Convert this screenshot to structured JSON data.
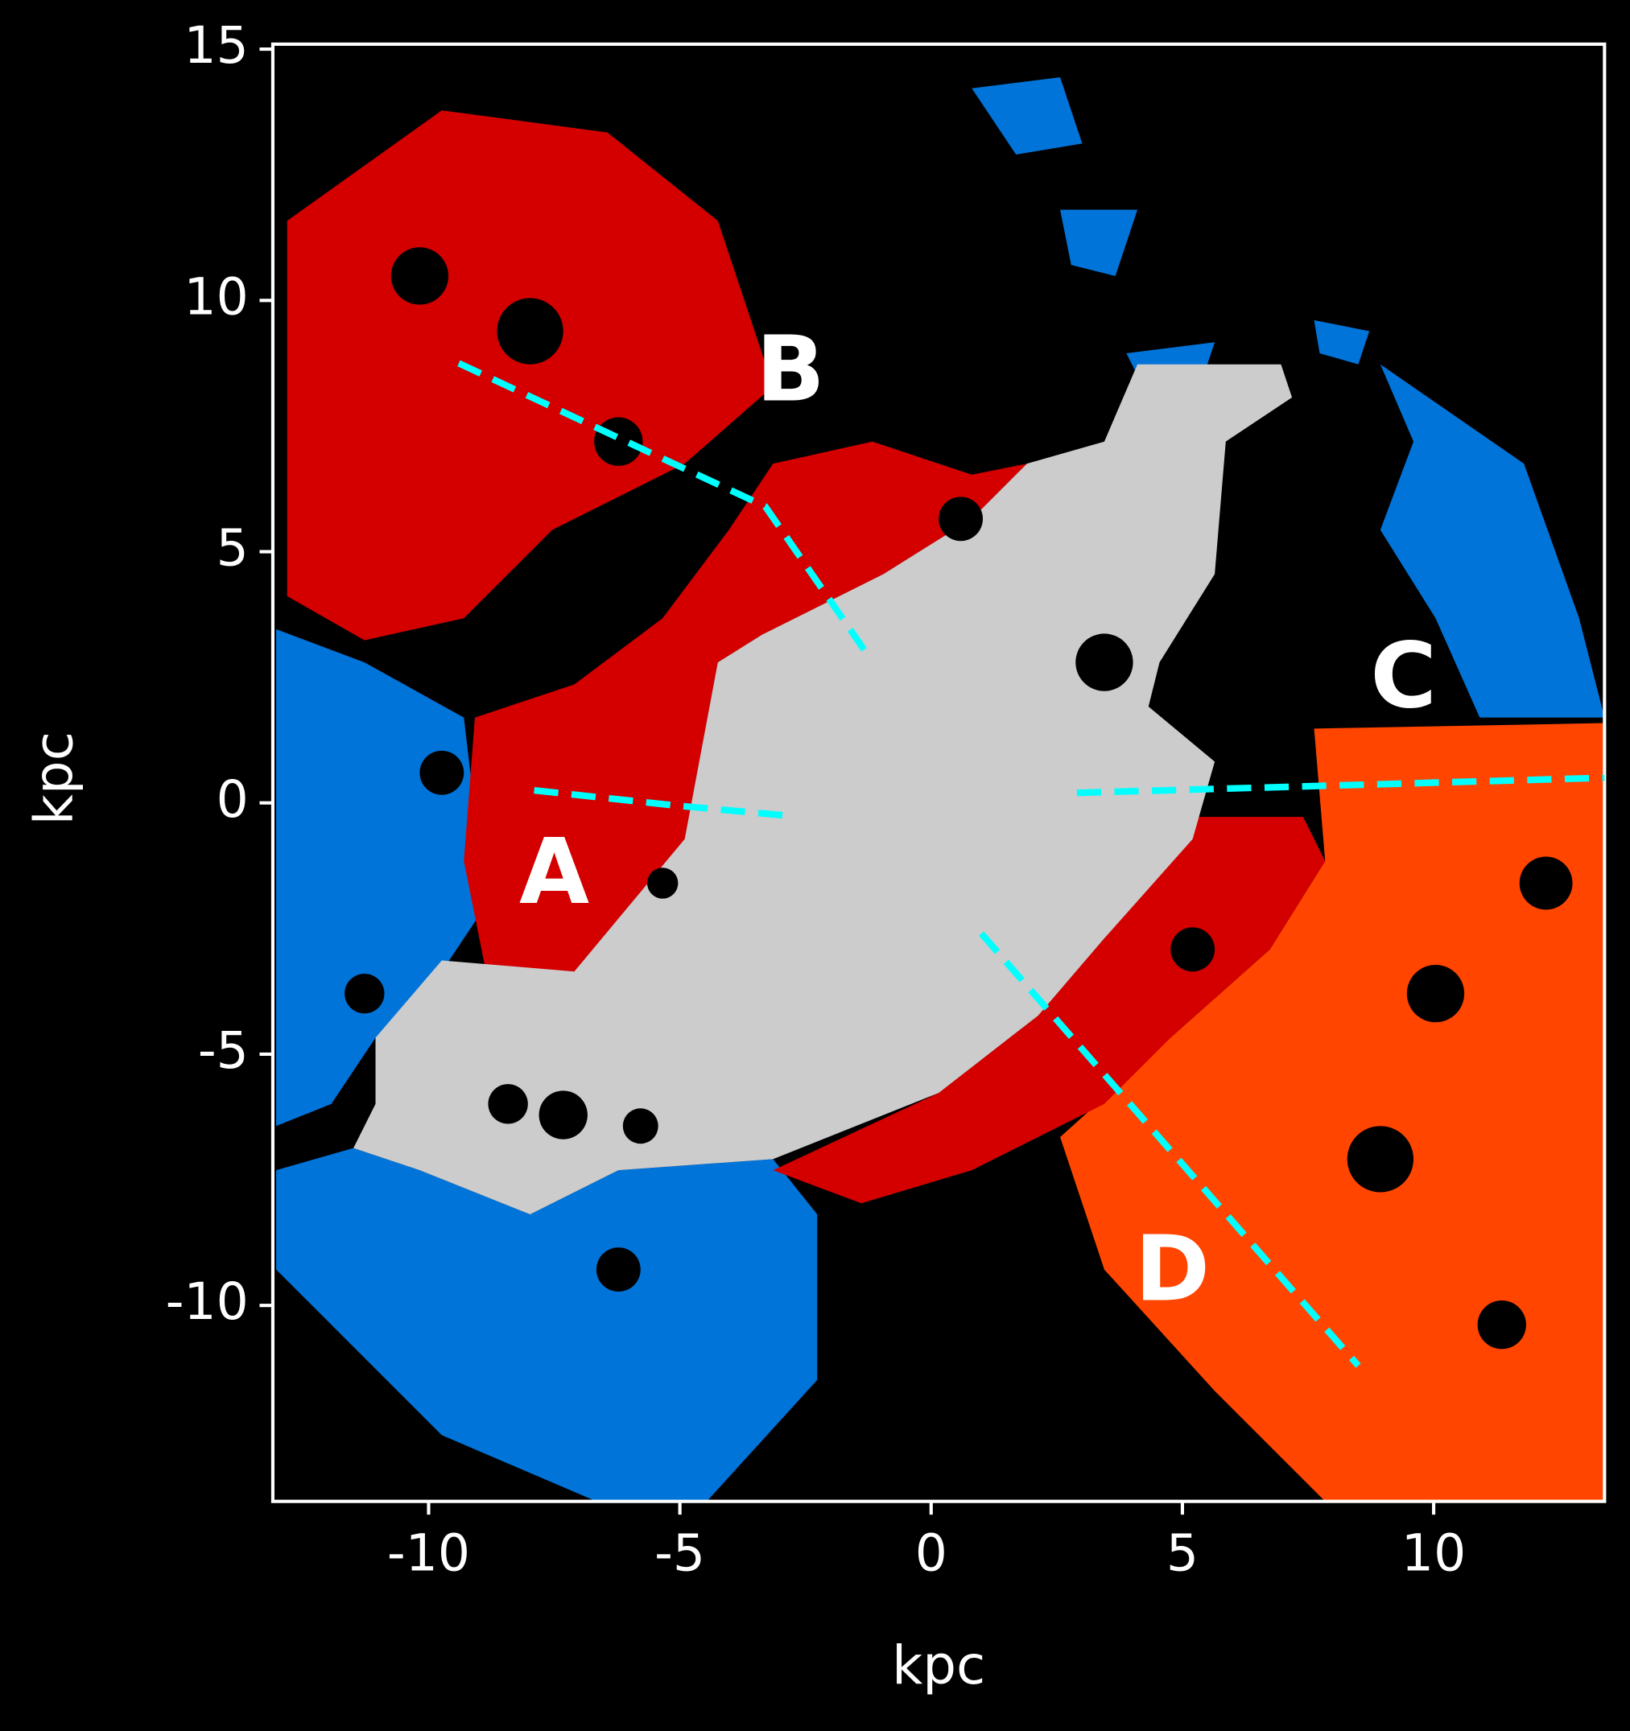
{
  "chart_data": {
    "type": "map",
    "xlabel": "kpc",
    "ylabel": "kpc",
    "xlim": [
      -13.1,
      13.4
    ],
    "ylim": [
      -13.9,
      15.1
    ],
    "xticks": [
      -10,
      -5,
      0,
      5,
      10
    ],
    "yticks": [
      -10,
      -5,
      0,
      5,
      10,
      15
    ],
    "guide_color": "#00ffff",
    "guides": [
      {
        "x": [
          -7.9,
          -5.1,
          -2.9
        ],
        "y": [
          0.25,
          -0.05,
          -0.25
        ]
      },
      {
        "x": [
          -9.4,
          -3.3,
          -1.3
        ],
        "y": [
          8.75,
          5.9,
          3.0
        ]
      },
      {
        "x": [
          2.9,
          13.4
        ],
        "y": [
          0.2,
          0.5
        ]
      },
      {
        "x": [
          1.0,
          8.5
        ],
        "y": [
          -2.6,
          -11.2
        ]
      }
    ],
    "annotations": [
      {
        "text": "A",
        "x": -7.5,
        "y": -1.5
      },
      {
        "text": "B",
        "x": -2.8,
        "y": 8.5
      },
      {
        "text": "C",
        "x": 9.4,
        "y": 2.4
      },
      {
        "text": "D",
        "x": 4.8,
        "y": -9.4
      }
    ]
  }
}
